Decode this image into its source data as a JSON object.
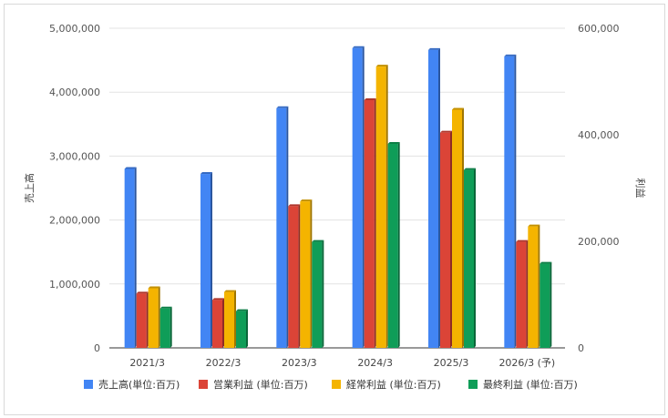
{
  "chart_data": {
    "type": "bar",
    "categories": [
      "2021/3",
      "2022/3",
      "2023/3",
      "2024/3",
      "2025/3",
      "2026/3 (予)"
    ],
    "ylabel_left": "売上高",
    "ylabel_right": "利益",
    "yleft_ticks": [
      "0",
      "1,000,000",
      "2,000,000",
      "3,000,000",
      "4,000,000",
      "5,000,000"
    ],
    "yright_ticks": [
      "0",
      "200,000",
      "400,000",
      "600,000"
    ],
    "ylim_left": [
      0,
      5000000
    ],
    "ylim_right": [
      0,
      600000
    ],
    "grid": true,
    "legend_position": "bottom",
    "series": [
      {
        "name": "売上高(単位:百万)",
        "axis": "left",
        "color": "#4285F4",
        "values": [
          2800000,
          2720000,
          3750000,
          4690000,
          4660000,
          4560000
        ]
      },
      {
        "name": "営業利益 (単位:百万)",
        "axis": "right",
        "color": "#DB4437",
        "values": [
          102000,
          90000,
          266000,
          465000,
          404000,
          199000
        ]
      },
      {
        "name": "経常利益 (単位:百万)",
        "axis": "right",
        "color": "#F4B400",
        "values": [
          112000,
          105000,
          275000,
          528000,
          447000,
          228000
        ]
      },
      {
        "name": "最終利益 (単位:百万)",
        "axis": "right",
        "color": "#0F9D58",
        "values": [
          74000,
          69000,
          199000,
          383000,
          334000,
          158000
        ]
      }
    ]
  }
}
